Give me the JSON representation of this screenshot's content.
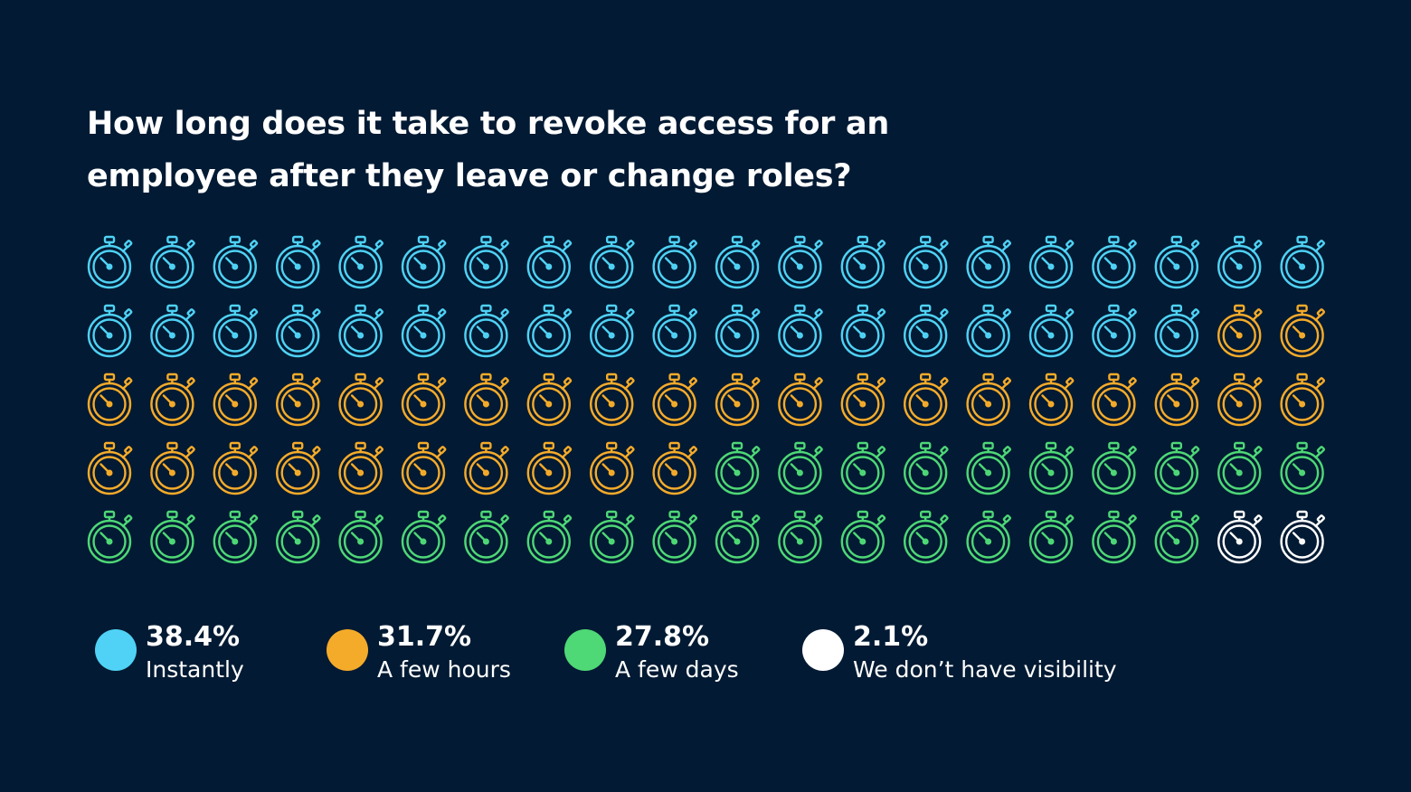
{
  "title": {
    "line1": "How long does it take to revoke access for an",
    "line2": "employee after they leave or change roles?"
  },
  "chart_data": {
    "type": "pictograph",
    "icon": "stopwatch-icon",
    "grid": {
      "rows": 5,
      "columns": 20
    },
    "series": [
      {
        "value": "38.4%",
        "label": "Instantly",
        "icons": 38,
        "color": "#4fd2f5"
      },
      {
        "value": "31.7%",
        "label": "A few hours",
        "icons": 32,
        "color": "#f5ab2a"
      },
      {
        "value": "27.8%",
        "label": "A few days",
        "icons": 28,
        "color": "#4ed876"
      },
      {
        "value": "2.1%",
        "label": "We don’t have visibility",
        "icons": 2,
        "color": "#ffffff"
      }
    ]
  }
}
